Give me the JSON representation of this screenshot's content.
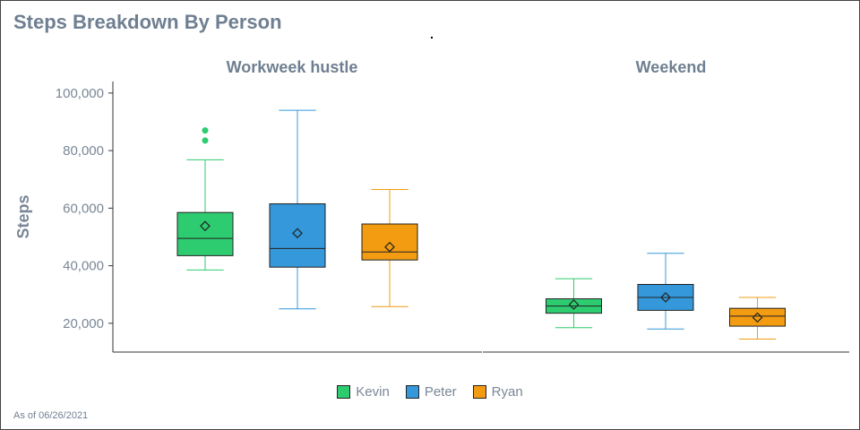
{
  "page": {
    "title": "Steps Breakdown By Person",
    "footnote": "As of 06/26/2021"
  },
  "chart_data": {
    "type": "boxplot",
    "title": "Steps Breakdown By Person",
    "ylabel": "Steps",
    "ylim": [
      10000,
      104000
    ],
    "yticks": [
      20000,
      40000,
      60000,
      80000,
      100000
    ],
    "ytick_labels": [
      "20,000",
      "40,000",
      "60,000",
      "80,000",
      "100,000"
    ],
    "grid": false,
    "legend_position": "bottom",
    "series": [
      {
        "name": "Kevin",
        "color": "#2ecc71"
      },
      {
        "name": "Peter",
        "color": "#3498db"
      },
      {
        "name": "Ryan",
        "color": "#f39c12"
      }
    ],
    "panels": [
      {
        "label": "Workweek hustle",
        "boxes": [
          {
            "series": "Kevin",
            "min": 38500,
            "q1": 43500,
            "median": 49500,
            "q3": 58500,
            "max": 76800,
            "mean": 53800,
            "outliers": [
              83500,
              87000
            ]
          },
          {
            "series": "Peter",
            "min": 25000,
            "q1": 39500,
            "median": 46000,
            "q3": 61500,
            "max": 94000,
            "mean": 51300,
            "outliers": []
          },
          {
            "series": "Ryan",
            "min": 25800,
            "q1": 42000,
            "median": 44800,
            "q3": 54500,
            "max": 66500,
            "mean": 46500,
            "outliers": []
          }
        ]
      },
      {
        "label": "Weekend",
        "boxes": [
          {
            "series": "Kevin",
            "min": 18500,
            "q1": 23500,
            "median": 26000,
            "q3": 28500,
            "max": 35500,
            "mean": 26500,
            "outliers": []
          },
          {
            "series": "Peter",
            "min": 18000,
            "q1": 24500,
            "median": 29000,
            "q3": 33500,
            "max": 44300,
            "mean": 29000,
            "outliers": []
          },
          {
            "series": "Ryan",
            "min": 14500,
            "q1": 19000,
            "median": 22500,
            "q3": 25200,
            "max": 29000,
            "mean": 22000,
            "outliers": []
          }
        ]
      }
    ]
  }
}
